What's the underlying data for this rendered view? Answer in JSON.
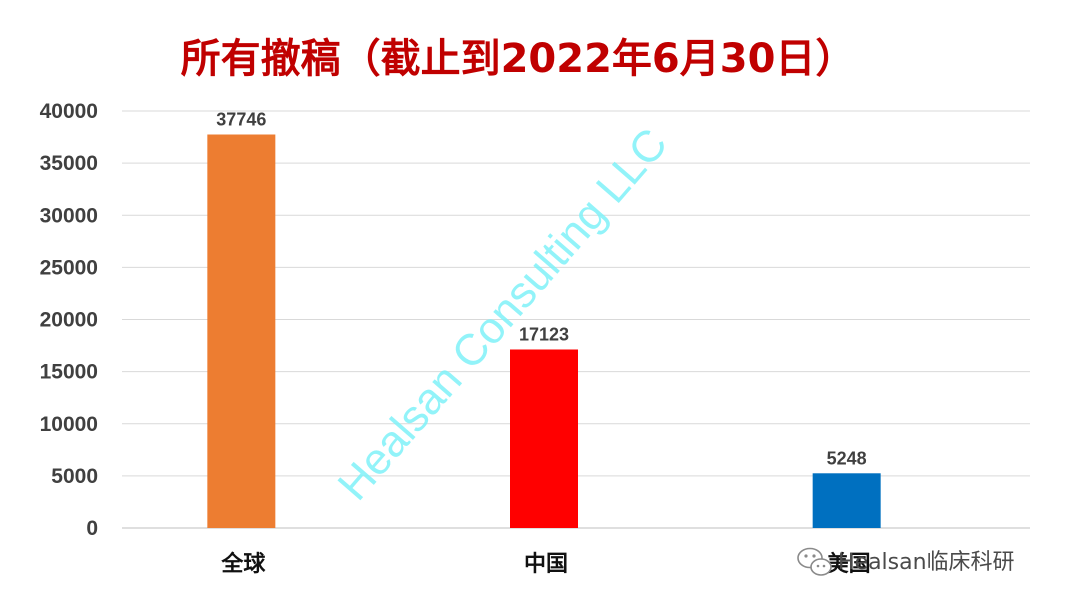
{
  "chart_data": {
    "type": "bar",
    "title": "所有撤稿（截止到2022年6月30日）",
    "categories": [
      "全球",
      "中国",
      "美国"
    ],
    "values": [
      37746,
      17123,
      5248
    ],
    "colors": [
      "#ed7d31",
      "#ff0000",
      "#0070c0"
    ],
    "ylim": [
      0,
      40000
    ],
    "yticks": [
      "0",
      "5000",
      "10000",
      "15000",
      "20000",
      "25000",
      "30000",
      "35000",
      "40000"
    ],
    "grid": true,
    "data_labels": [
      "37746",
      "17123",
      "5248"
    ],
    "xlabel": "",
    "ylabel": ""
  },
  "watermark": {
    "text": "Healsan Consulting LLC"
  },
  "overlay": {
    "wechat_text": "Healsan临床科研",
    "icon": "wechat-icon"
  }
}
